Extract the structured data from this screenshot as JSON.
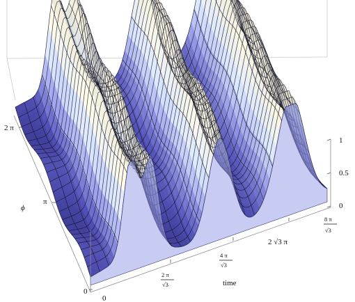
{
  "chart_data": {
    "type": "surface",
    "title": "",
    "x_axis": {
      "label": "time",
      "range": [
        0,
        13.0
      ],
      "ticks": [
        {
          "value": 0,
          "label": "0"
        },
        {
          "value": 3.628,
          "label": "2π/√3"
        },
        {
          "value": 7.255,
          "label": "4π/√3"
        },
        {
          "value": 10.883,
          "label": "2√3 π"
        },
        {
          "value": 14.51,
          "label": "8π/√3"
        }
      ]
    },
    "y_axis": {
      "label": "ϕ",
      "range": [
        0,
        6.283
      ],
      "ticks": [
        {
          "value": 0,
          "label": "0"
        },
        {
          "value": 3.1416,
          "label": "π"
        },
        {
          "value": 6.2832,
          "label": "2 π"
        }
      ]
    },
    "z_axis": {
      "label": "",
      "range": [
        0,
        1
      ],
      "ticks": [
        {
          "value": 0,
          "label": "0"
        },
        {
          "value": 0.5,
          "label": "0.5"
        },
        {
          "value": 1,
          "label": "1"
        }
      ]
    },
    "surface": {
      "description_free": true,
      "ridge_centers_time": [
        2.2,
        3.3,
        7.1,
        11.0
      ],
      "trough_centers_time": [
        0.6,
        5.0,
        9.2,
        12.6
      ],
      "phi_modulation": "small",
      "colormap": [
        "#2b2a86",
        "#5a59c6",
        "#9fa3ee",
        "#dbe8ff",
        "#fffbe8"
      ],
      "mesh_color": "#141428",
      "grid_t_count": 26,
      "grid_phi_count": 24
    },
    "box": true,
    "grid": false
  },
  "labels": {
    "phi": "ϕ",
    "time": "time",
    "two_pi": "2 π",
    "pi": "π",
    "zero_left": "0",
    "zero_bottom": "0",
    "z0": "0",
    "z05": "0.5",
    "z1": "1",
    "t_2pi_num": "2 π",
    "t_2pi_den": "√3",
    "t_4pi_num": "4 π",
    "t_4pi_den": "√3",
    "t_2sqrt3pi": "2 √3  π",
    "t_8pi_num": "8 π",
    "t_8pi_den": "√3"
  }
}
